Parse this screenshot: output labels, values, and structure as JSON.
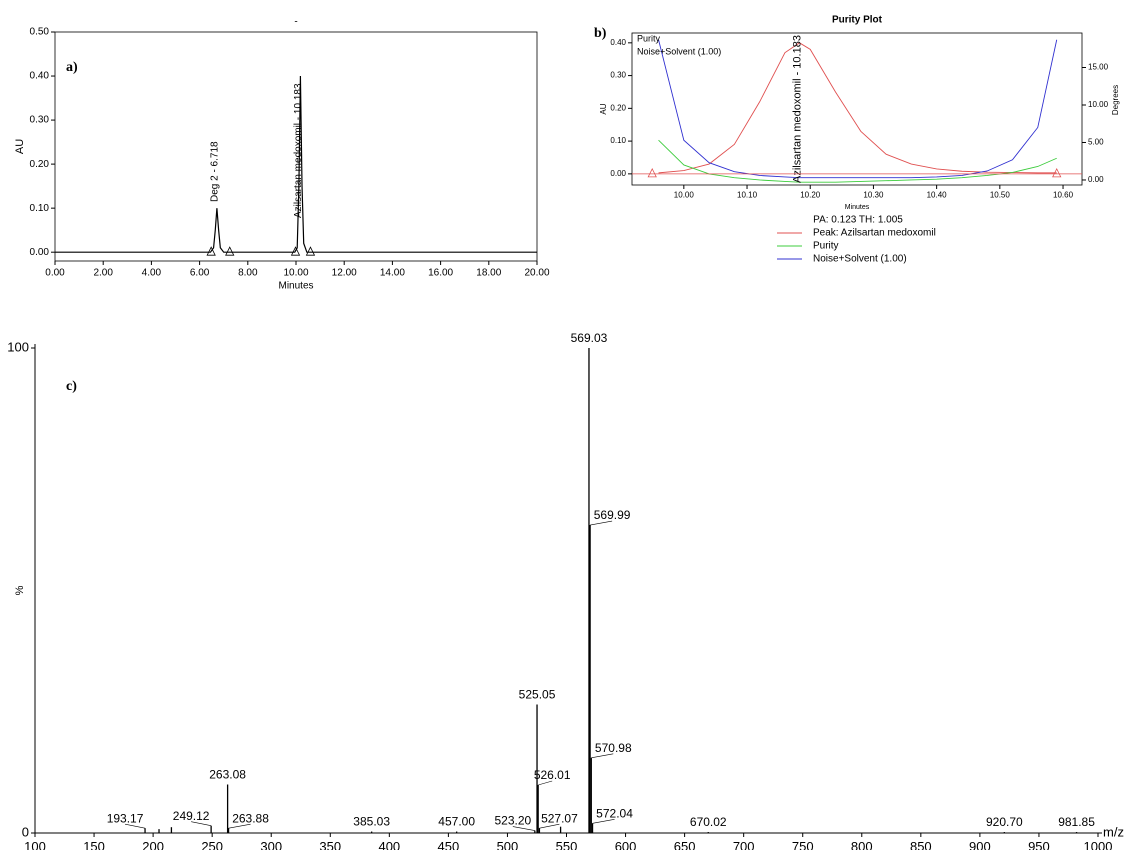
{
  "chart_data": [
    {
      "type": "line",
      "panel_label": "a)",
      "title": "-",
      "x_label": "Minutes",
      "y_label": "AU",
      "x": [
        0,
        6.45,
        6.58,
        6.65,
        6.718,
        6.79,
        6.86,
        7.0,
        9.95,
        10.05,
        10.12,
        10.183,
        10.25,
        10.32,
        10.45,
        20
      ],
      "series": [
        {
          "color": "#000000",
          "values": [
            0,
            0,
            0.01,
            0.05,
            0.1,
            0.05,
            0.01,
            0,
            0,
            0.01,
            0.15,
            0.4,
            0.15,
            0.02,
            0,
            0
          ]
        }
      ],
      "annotations": [
        {
          "text": "Deg 2 - 6.718",
          "x": 6.718
        },
        {
          "text": "Azilsartan medoxomil - 10.183",
          "x": 10.183
        }
      ],
      "peak_bounds": [
        6.48,
        7.25,
        9.98,
        10.6
      ],
      "xlim": [
        0,
        20
      ],
      "xticks": [
        {
          "value": 0,
          "label": "0.00"
        },
        {
          "value": 2,
          "label": "2.00"
        },
        {
          "value": 4,
          "label": "4.00"
        },
        {
          "value": 6,
          "label": "6.00"
        },
        {
          "value": 8,
          "label": "8.00"
        },
        {
          "value": 10,
          "label": "10.00"
        },
        {
          "value": 12,
          "label": "12.00"
        },
        {
          "value": 14,
          "label": "14.00"
        },
        {
          "value": 16,
          "label": "16.00"
        },
        {
          "value": 18,
          "label": "18.00"
        },
        {
          "value": 20,
          "label": "20.00"
        }
      ],
      "ylim": [
        -0.02,
        0.5
      ],
      "yticks": [
        {
          "value": 0,
          "label": "0.00"
        },
        {
          "value": 0.1,
          "label": "0.10"
        },
        {
          "value": 0.2,
          "label": "0.20"
        },
        {
          "value": 0.3,
          "label": "0.30"
        },
        {
          "value": 0.4,
          "label": "0.40"
        },
        {
          "value": 0.5,
          "label": "0.50"
        }
      ]
    },
    {
      "type": "line",
      "panel_label": "b)",
      "title": "Purity Plot",
      "x_label": "Minutes",
      "y_label": "AU",
      "y2_label": "Degrees",
      "footer": "PA:  0.123  TH:  1.005",
      "x": [
        9.96,
        10.0,
        10.04,
        10.08,
        10.12,
        10.16,
        10.183,
        10.2,
        10.24,
        10.28,
        10.32,
        10.36,
        10.4,
        10.44,
        10.48,
        10.52,
        10.56,
        10.59
      ],
      "series": [
        {
          "name": "Peak: Azilsartan medoxomil",
          "color": "#e05050",
          "values": [
            0.003,
            0.01,
            0.03,
            0.09,
            0.22,
            0.37,
            0.4,
            0.38,
            0.25,
            0.13,
            0.06,
            0.03,
            0.015,
            0.008,
            0.005,
            0.004,
            0.003,
            0.003
          ]
        },
        {
          "name": "Purity",
          "color": "#3ccc3c",
          "axis": "y2",
          "values": [
            5.3,
            2.0,
            0.8,
            0.3,
            0.0,
            -0.2,
            -0.3,
            -0.3,
            -0.3,
            -0.2,
            -0.1,
            0.0,
            0.1,
            0.3,
            0.6,
            1.0,
            1.8,
            2.9
          ]
        },
        {
          "name": "Noise+Solvent (1.00)",
          "color": "#3030d0",
          "axis": "y2",
          "values": [
            18.7,
            5.3,
            2.3,
            1.1,
            0.6,
            0.4,
            0.3,
            0.3,
            0.3,
            0.3,
            0.3,
            0.3,
            0.4,
            0.6,
            1.2,
            2.7,
            7.0,
            18.7
          ]
        }
      ],
      "annotations": [
        {
          "text": "Azilsartan medoxomil - 10.183",
          "x": 10.183
        }
      ],
      "peak_bounds": [
        9.95,
        10.59
      ],
      "xlim": [
        9.918,
        10.63
      ],
      "xticks": [
        {
          "value": 10.0,
          "label": "10.00"
        },
        {
          "value": 10.1,
          "label": "10.10"
        },
        {
          "value": 10.2,
          "label": "10.20"
        },
        {
          "value": 10.3,
          "label": "10.30"
        },
        {
          "value": 10.4,
          "label": "10.40"
        },
        {
          "value": 10.5,
          "label": "10.50"
        },
        {
          "value": 10.6,
          "label": "10.60"
        }
      ],
      "ylim": [
        -0.034,
        0.43
      ],
      "yticks": [
        {
          "value": 0,
          "label": "0.00"
        },
        {
          "value": 0.1,
          "label": "0.10"
        },
        {
          "value": 0.2,
          "label": "0.20"
        },
        {
          "value": 0.3,
          "label": "0.30"
        },
        {
          "value": 0.4,
          "label": "0.40"
        }
      ],
      "y2lim": [
        -0.67,
        19.6
      ],
      "y2ticks": [
        {
          "value": 0,
          "label": "0.00"
        },
        {
          "value": 5,
          "label": "5.00"
        },
        {
          "value": 10,
          "label": "10.00"
        },
        {
          "value": 15,
          "label": "15.00"
        }
      ]
    },
    {
      "type": "stem",
      "panel_label": "c)",
      "x_label": "m/z",
      "y_label": "%",
      "x": [
        193.17,
        205.0,
        215.5,
        249.12,
        263.08,
        263.88,
        385.03,
        457.0,
        523.2,
        525.05,
        526.01,
        527.07,
        545.0,
        569.03,
        569.99,
        570.98,
        572.04,
        670.02,
        920.7,
        981.85
      ],
      "values": [
        1.0,
        0.8,
        1.2,
        1.5,
        10.0,
        1.0,
        0.3,
        0.3,
        0.5,
        26.5,
        9.9,
        1.0,
        1.3,
        100,
        63.5,
        15.5,
        2.0,
        0.2,
        0.2,
        0.2
      ],
      "x_labels": [
        "193.17",
        null,
        null,
        "249.12",
        "263.08",
        "263.88",
        "385.03",
        "457.00",
        "523.20",
        "525.05",
        "526.01",
        "527.07",
        null,
        "569.03",
        "569.99",
        "570.98",
        "572.04",
        "670.02",
        "920.70",
        "981.85"
      ],
      "color": "#000000",
      "xlim": [
        100,
        1000
      ],
      "xticks": [
        100,
        150,
        200,
        250,
        300,
        350,
        400,
        450,
        500,
        550,
        600,
        650,
        700,
        750,
        800,
        850,
        900,
        950,
        1000
      ],
      "ylim": [
        0,
        100
      ],
      "yticks": [
        0,
        100
      ]
    }
  ]
}
